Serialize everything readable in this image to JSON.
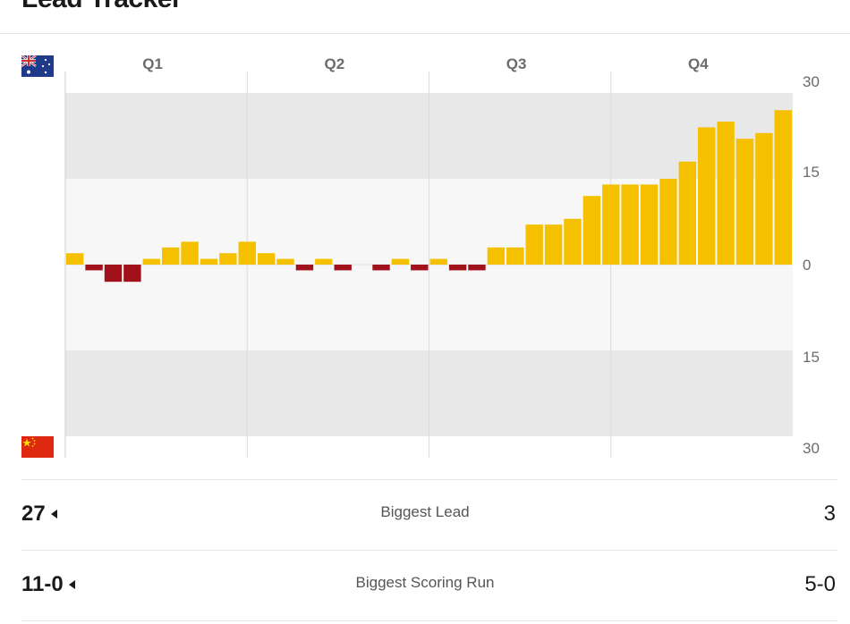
{
  "header": {
    "title": "Lead Tracker"
  },
  "teams": {
    "top": {
      "flag_icon": "australia-flag-icon"
    },
    "bottom": {
      "flag_icon": "china-flag-icon"
    }
  },
  "colors": {
    "top_lead": "#f5c000",
    "bottom_lead": "#a0111b",
    "band_dark": "#e8e8e8",
    "band_light": "#f7f7f7"
  },
  "chart_data": {
    "type": "bar",
    "quarters": [
      "Q1",
      "Q2",
      "Q3",
      "Q4"
    ],
    "y_ticks": [
      "30",
      "15",
      "0",
      "15",
      "30"
    ],
    "ylim": [
      -30,
      30
    ],
    "grid": true,
    "values": [
      2,
      -1,
      -3,
      -3,
      1,
      3,
      4,
      1,
      2,
      4,
      2,
      1,
      -1,
      1,
      -1,
      0,
      -1,
      1,
      -1,
      1,
      -1,
      -1,
      3,
      3,
      7,
      7,
      8,
      12,
      14,
      14,
      14,
      15,
      18,
      24,
      25,
      22,
      23,
      27
    ]
  },
  "stats": [
    {
      "left": "27",
      "label": "Biggest Lead",
      "right": "3"
    },
    {
      "left": "11-0",
      "label": "Biggest Scoring Run",
      "right": "5-0"
    }
  ]
}
